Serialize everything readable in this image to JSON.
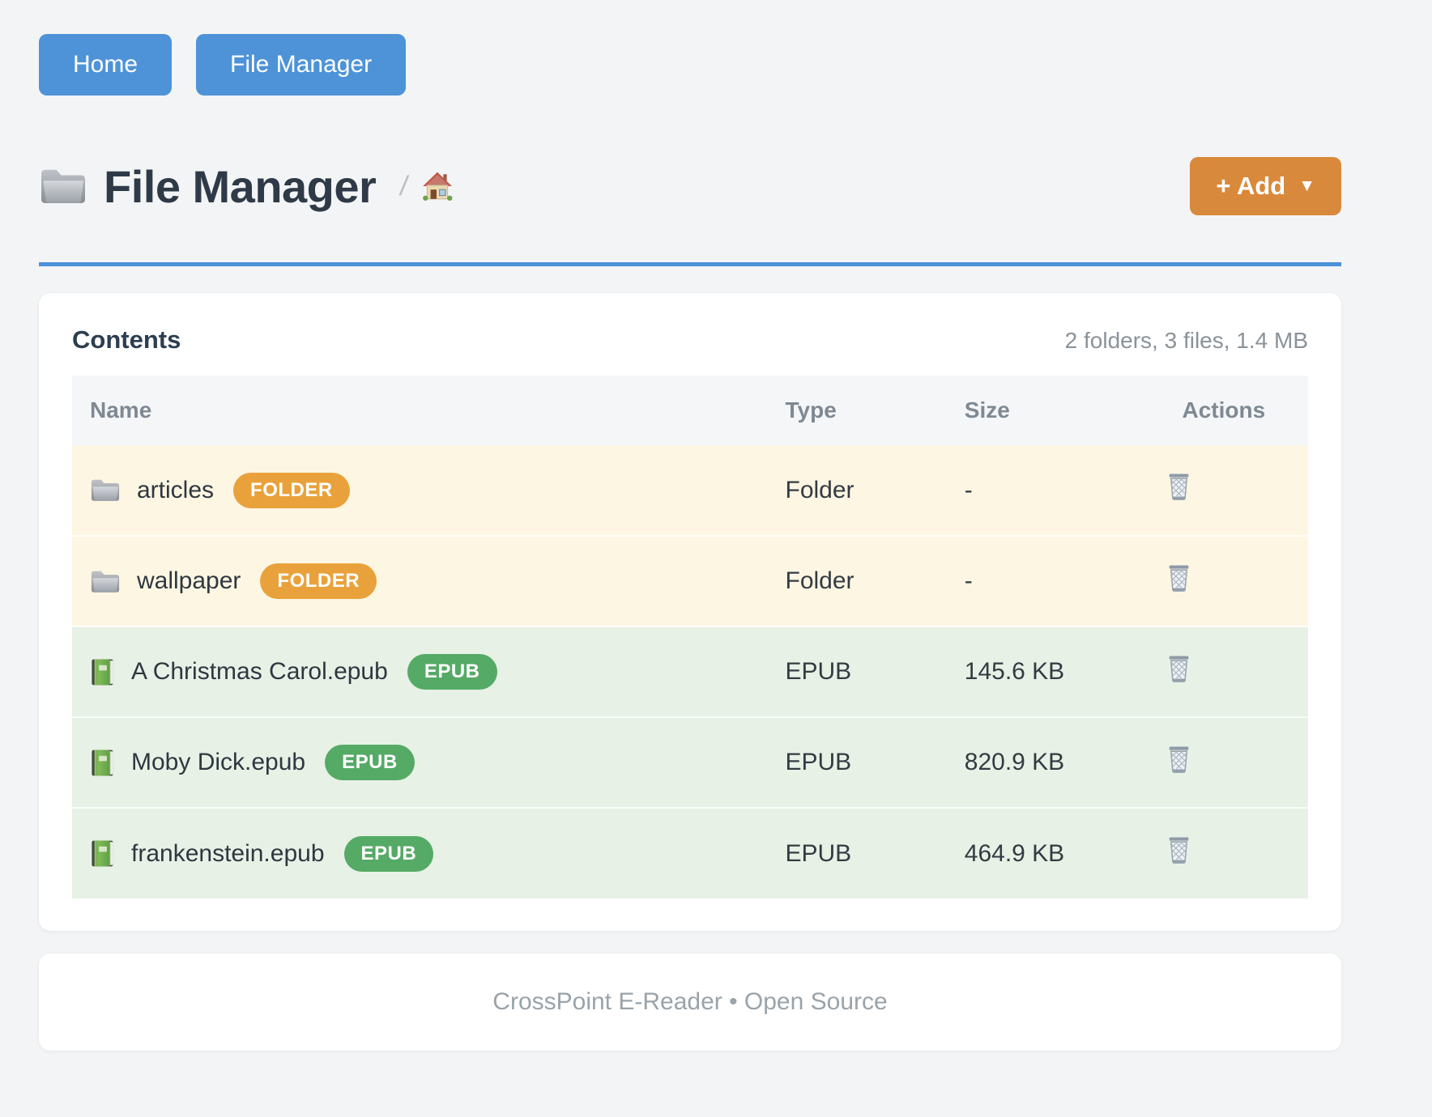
{
  "nav": {
    "home_label": "Home",
    "file_manager_label": "File Manager"
  },
  "header": {
    "title": "File Manager",
    "title_icon": "folder-icon",
    "breadcrumb_separator": "/",
    "breadcrumb_home_icon": "house-icon",
    "add_button_label": "+ Add",
    "add_button_caret": "▼"
  },
  "contents": {
    "heading": "Contents",
    "summary": "2 folders, 3 files, 1.4 MB"
  },
  "table": {
    "columns": [
      "Name",
      "Type",
      "Size",
      "Actions"
    ],
    "rows": [
      {
        "icon": "folder-icon",
        "name": "articles",
        "badge": "FOLDER",
        "kind": "folder",
        "type": "Folder",
        "size": "-",
        "action_icon": "trash-icon"
      },
      {
        "icon": "folder-icon",
        "name": "wallpaper",
        "badge": "FOLDER",
        "kind": "folder",
        "type": "Folder",
        "size": "-",
        "action_icon": "trash-icon"
      },
      {
        "icon": "book-icon",
        "name": "A Christmas Carol.epub",
        "badge": "EPUB",
        "kind": "epub",
        "type": "EPUB",
        "size": "145.6 KB",
        "action_icon": "trash-icon"
      },
      {
        "icon": "book-icon",
        "name": "Moby Dick.epub",
        "badge": "EPUB",
        "kind": "epub",
        "type": "EPUB",
        "size": "820.9 KB",
        "action_icon": "trash-icon"
      },
      {
        "icon": "book-icon",
        "name": "frankenstein.epub",
        "badge": "EPUB",
        "kind": "epub",
        "type": "EPUB",
        "size": "464.9 KB",
        "action_icon": "trash-icon"
      }
    ]
  },
  "footer": {
    "text": "CrossPoint E-Reader • Open Source"
  },
  "colors": {
    "page_bg": "#f3f4f5",
    "nav_button_bg": "#4e93d7",
    "add_button_bg": "#d9893b",
    "divider_blue": "#4a90d8",
    "folder_badge_bg": "#e9a23b",
    "epub_badge_bg": "#55aa66",
    "folder_row_bg": "#fdf6e3",
    "epub_row_bg": "#e7f1e6"
  }
}
